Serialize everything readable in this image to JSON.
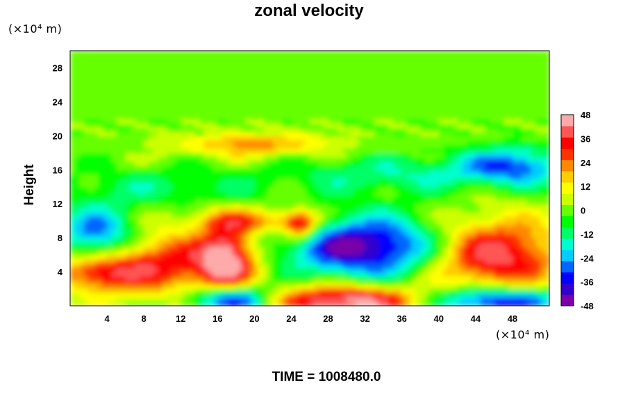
{
  "chart_data": {
    "type": "heatmap",
    "title": "zonal velocity",
    "ylabel": "Height",
    "xlabel": "",
    "x_unit": "(×10⁴ m)",
    "y_unit": "(×10⁴ m)",
    "xlim": [
      0,
      52
    ],
    "ylim": [
      0,
      30
    ],
    "x_ticks": [
      "4",
      "8",
      "12",
      "16",
      "20",
      "24",
      "28",
      "32",
      "36",
      "40",
      "44",
      "48"
    ],
    "y_ticks": [
      "4",
      "8",
      "12",
      "16",
      "20",
      "24",
      "28"
    ],
    "colorbar": {
      "range": [
        -48,
        48
      ],
      "ticks": [
        "48",
        "36",
        "24",
        "12",
        "0",
        "-12",
        "-24",
        "-36",
        "-48"
      ],
      "colors": [
        "#7a00a8",
        "#3300cc",
        "#0000ff",
        "#0066ff",
        "#00ccff",
        "#00ffcc",
        "#00ff66",
        "#00ff00",
        "#66ff00",
        "#ccff00",
        "#ffff00",
        "#ffcc00",
        "#ff8800",
        "#ff3300",
        "#ff0000",
        "#ff5555",
        "#ffaaaa"
      ]
    },
    "features": [
      {
        "x": 10,
        "y": 5,
        "sx": 6,
        "sy": 2.5,
        "v": 34
      },
      {
        "x": 3,
        "y": 4,
        "sx": 3,
        "sy": 1.5,
        "v": 30
      },
      {
        "x": 3,
        "y": 8,
        "sx": 3,
        "sy": 2.5,
        "v": -34
      },
      {
        "x": 17,
        "y": 5.5,
        "sx": 2,
        "sy": 3,
        "v": 40
      },
      {
        "x": 17.5,
        "y": 0.8,
        "sx": 3,
        "sy": 1.2,
        "v": -48
      },
      {
        "x": 25,
        "y": 9.5,
        "sx": 1.3,
        "sy": 1.2,
        "v": 38
      },
      {
        "x": 32,
        "y": 7,
        "sx": 6,
        "sy": 2.5,
        "v": -46
      },
      {
        "x": 30,
        "y": 0.6,
        "sx": 6,
        "sy": 1.3,
        "v": 48
      },
      {
        "x": 46,
        "y": 6,
        "sx": 5,
        "sy": 3,
        "v": 42
      },
      {
        "x": 46,
        "y": 0.6,
        "sx": 5,
        "sy": 1.2,
        "v": -44
      },
      {
        "x": 20,
        "y": 19,
        "sx": 6,
        "sy": 1,
        "v": 22
      },
      {
        "x": 48,
        "y": 16.5,
        "sx": 4,
        "sy": 1.5,
        "v": -30
      },
      {
        "x": 35,
        "y": 15.5,
        "sx": 8,
        "sy": 1.5,
        "v": -14
      },
      {
        "x": 10,
        "y": 14,
        "sx": 8,
        "sy": 1.5,
        "v": -10
      },
      {
        "x": 20,
        "y": 10,
        "sx": 5,
        "sy": 1,
        "v": 22
      }
    ]
  },
  "time_label": "TIME = 1008480.0"
}
